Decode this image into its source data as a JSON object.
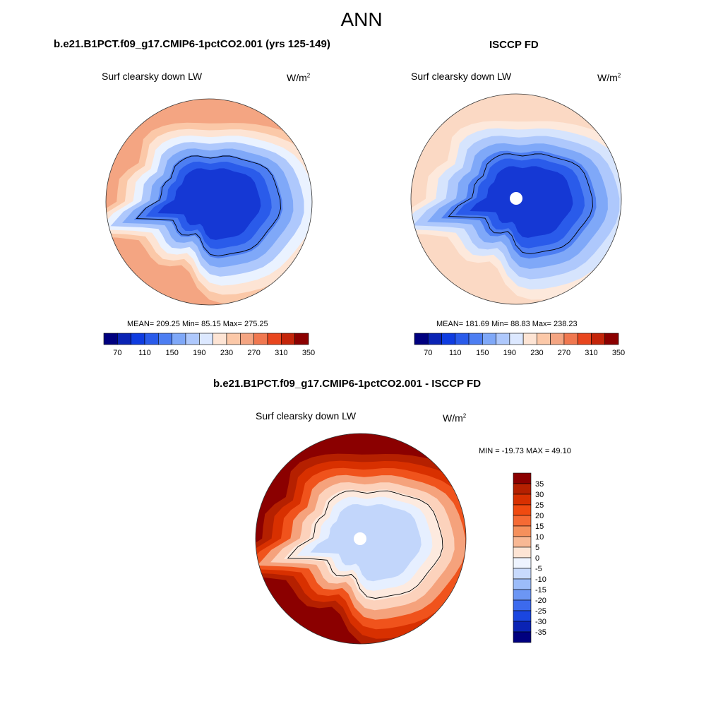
{
  "title": "ANN",
  "panels": {
    "model": {
      "title": "b.e21.B1PCT.f09_g17.CMIP6-1pctCO2.001 (yrs 125-149)",
      "variable": "Surf clearsky down LW",
      "units_base": "W/m",
      "units_exp": "2",
      "stats": "MEAN= 209.25  Min=  85.15  Max= 275.25"
    },
    "obs": {
      "title": "ISCCP FD",
      "variable": "Surf clearsky down LW",
      "units_base": "W/m",
      "units_exp": "2",
      "stats": "MEAN= 181.69  Min=  88.83  Max= 238.23"
    },
    "diff": {
      "title": "b.e21.B1PCT.f09_g17.CMIP6-1pctCO2.001 - ISCCP FD",
      "variable": "Surf clearsky down LW",
      "units_base": "W/m",
      "units_exp": "2",
      "stats": "MIN = -19.73 MAX =  49.10"
    }
  },
  "chart_data": [
    {
      "type": "heatmap",
      "projection": "south-polar-stereographic",
      "title": "b.e21.B1PCT.f09_g17.CMIP6-1pctCO2.001 (yrs 125-149)",
      "variable": "Surf clearsky down LW",
      "units": "W/m2",
      "mean": 209.25,
      "min": 85.15,
      "max": 275.25,
      "colorbar_levels": [
        70,
        90,
        110,
        130,
        150,
        170,
        190,
        210,
        230,
        250,
        270,
        290,
        310,
        330,
        350
      ],
      "colorbar_tick_labels": [
        "70",
        "110",
        "150",
        "190",
        "230",
        "270",
        "310",
        "350"
      ],
      "rings": [
        {
          "range": "270-290",
          "color": "#f4a582"
        },
        {
          "range": "250-270",
          "color": "#fbc8a8"
        },
        {
          "range": "230-250",
          "color": "#fde4d4"
        },
        {
          "range": "210-230",
          "color": "#eaf2ff"
        },
        {
          "range": "170-190",
          "color": "#aec8fc"
        },
        {
          "range": "150-170",
          "color": "#7fa8f8"
        },
        {
          "range": "130-150",
          "color": "#4d7ef2"
        },
        {
          "range": "110-130",
          "color": "#2a5bea"
        },
        {
          "range": "90-110",
          "color": "#1538d4"
        }
      ]
    },
    {
      "type": "heatmap",
      "projection": "south-polar-stereographic",
      "title": "ISCCP FD",
      "variable": "Surf clearsky down LW",
      "units": "W/m2",
      "mean": 181.69,
      "min": 88.83,
      "max": 238.23,
      "colorbar_levels": [
        70,
        90,
        110,
        130,
        150,
        170,
        190,
        210,
        230,
        250,
        270,
        290,
        310,
        330,
        350
      ],
      "colorbar_tick_labels": [
        "70",
        "110",
        "150",
        "190",
        "230",
        "270",
        "310",
        "350"
      ],
      "rings": [
        {
          "range": "230-250",
          "color": "#fbd9c4"
        },
        {
          "range": "210-230",
          "color": "#fde9dc"
        },
        {
          "range": "190-210",
          "color": "#d6e4fd"
        },
        {
          "range": "170-190",
          "color": "#aec8fc"
        },
        {
          "range": "150-170",
          "color": "#7fa8f8"
        },
        {
          "range": "130-150",
          "color": "#4d7ef2"
        },
        {
          "range": "110-130",
          "color": "#2a5bea"
        },
        {
          "range": "90-110",
          "color": "#1538d4"
        }
      ]
    },
    {
      "type": "heatmap",
      "projection": "south-polar-stereographic",
      "title": "b.e21.B1PCT.f09_g17.CMIP6-1pctCO2.001 - ISCCP FD",
      "variable": "Surf clearsky down LW",
      "units": "W/m2",
      "min": -19.73,
      "max": 49.1,
      "colorbar_levels": [
        35,
        30,
        25,
        20,
        15,
        10,
        5,
        0,
        -5,
        -10,
        -15,
        -20,
        -25,
        -30,
        -35
      ],
      "colorbar_tick_labels": [
        "35",
        "30",
        "25",
        "20",
        "15",
        "10",
        "5",
        "0",
        "-5",
        "-10",
        "-15",
        "-20",
        "-25",
        "-30",
        "-35"
      ],
      "rings": [
        {
          "range": ">35",
          "color": "#8b0000"
        },
        {
          "range": "30-35",
          "color": "#b52000"
        },
        {
          "range": "25-30",
          "color": "#d83000"
        },
        {
          "range": "15-25",
          "color": "#f0531c"
        },
        {
          "range": "10-15",
          "color": "#f5a27c"
        },
        {
          "range": "5-10",
          "color": "#fcd2bc"
        },
        {
          "range": "0-5",
          "color": "#fdeadf"
        },
        {
          "range": "-5-0",
          "color": "#e6efff"
        },
        {
          "range": "-10--5",
          "color": "#c2d6fb"
        }
      ]
    }
  ],
  "colors": {
    "diverging_scale": [
      "#00007f",
      "#0a23b4",
      "#0f3ce0",
      "#2a5bea",
      "#4d7ef2",
      "#7fa8f8",
      "#aec8fc",
      "#dce8ff",
      "#fde4d4",
      "#fbc8a8",
      "#f4a582",
      "#f07850",
      "#e8461e",
      "#c4250a",
      "#8b0000"
    ],
    "diff_scale_top_to_bottom": [
      "#8b0000",
      "#b52000",
      "#d83000",
      "#f04a10",
      "#f56a34",
      "#f5905c",
      "#f8b894",
      "#fde4d4",
      "#eef4ff",
      "#c8dafd",
      "#9cbcf9",
      "#6c96f4",
      "#3c6aee",
      "#1a46e0",
      "#0a23b4",
      "#00007f"
    ]
  }
}
